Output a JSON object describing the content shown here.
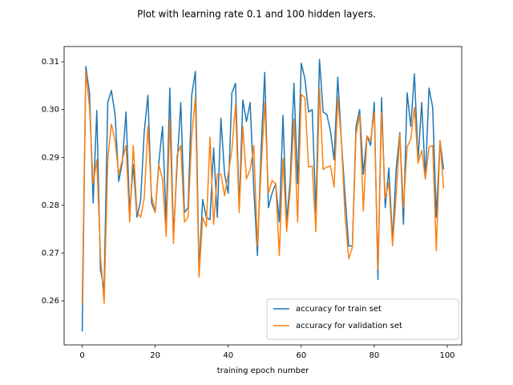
{
  "chart_data": {
    "type": "line",
    "title": "Plot with learning rate 0.1 and 100 hidden layers.",
    "x_label": "training epoch number",
    "x": [
      0,
      1,
      2,
      3,
      4,
      5,
      6,
      7,
      8,
      9,
      10,
      11,
      12,
      13,
      14,
      15,
      16,
      17,
      18,
      19,
      20,
      21,
      22,
      23,
      24,
      25,
      26,
      27,
      28,
      29,
      30,
      31,
      32,
      33,
      34,
      35,
      36,
      37,
      38,
      39,
      40,
      41,
      42,
      43,
      44,
      45,
      46,
      47,
      48,
      49,
      50,
      51,
      52,
      53,
      54,
      55,
      56,
      57,
      58,
      59,
      60,
      61,
      62,
      63,
      64,
      65,
      66,
      67,
      68,
      69,
      70,
      71,
      72,
      73,
      74,
      75,
      76,
      77,
      78,
      79,
      80,
      81,
      82,
      83,
      84,
      85,
      86,
      87,
      88,
      89,
      90,
      91,
      92,
      93,
      94,
      95,
      96,
      97,
      98,
      99
    ],
    "series": [
      {
        "name": "accuracy for train set",
        "color": "#1f77b4",
        "values": [
          0.2536,
          0.309,
          0.3035,
          0.2805,
          0.2998,
          0.2665,
          0.2625,
          0.3015,
          0.304,
          0.299,
          0.285,
          0.289,
          0.2995,
          0.2785,
          0.2885,
          0.2775,
          0.281,
          0.2955,
          0.303,
          0.2805,
          0.2785,
          0.289,
          0.2965,
          0.2765,
          0.3045,
          0.2735,
          0.2885,
          0.3015,
          0.2785,
          0.2795,
          0.303,
          0.308,
          0.2665,
          0.2812,
          0.2775,
          0.277,
          0.292,
          0.2775,
          0.2982,
          0.2865,
          0.2825,
          0.3035,
          0.3055,
          0.2795,
          0.302,
          0.2975,
          0.3015,
          0.2835,
          0.2695,
          0.2915,
          0.3078,
          0.2795,
          0.2825,
          0.2845,
          0.2765,
          0.2988,
          0.2765,
          0.2855,
          0.3055,
          0.2845,
          0.3097,
          0.3065,
          0.2995,
          0.3,
          0.2785,
          0.3105,
          0.2995,
          0.299,
          0.2955,
          0.2895,
          0.3068,
          0.2935,
          0.282,
          0.2715,
          0.2715,
          0.2965,
          0.3,
          0.2865,
          0.2945,
          0.2925,
          0.3015,
          0.2645,
          0.3025,
          0.2795,
          0.2878,
          0.2725,
          0.2875,
          0.2952,
          0.276,
          0.3035,
          0.2965,
          0.3075,
          0.2895,
          0.3015,
          0.2855,
          0.3045,
          0.3005,
          0.2775,
          0.2935,
          0.2875
        ]
      },
      {
        "name": "accuracy for validation set",
        "color": "#ff7f0e",
        "values": [
          0.2595,
          0.308,
          0.3005,
          0.2845,
          0.2895,
          0.2695,
          0.2595,
          0.2895,
          0.297,
          0.2935,
          0.2865,
          0.2895,
          0.2925,
          0.2765,
          0.2925,
          0.2785,
          0.2775,
          0.2815,
          0.2965,
          0.282,
          0.2785,
          0.2885,
          0.2855,
          0.2735,
          0.298,
          0.272,
          0.2905,
          0.2925,
          0.2765,
          0.2775,
          0.2945,
          0.3025,
          0.265,
          0.2775,
          0.2755,
          0.2942,
          0.276,
          0.2865,
          0.2865,
          0.282,
          0.2865,
          0.2915,
          0.301,
          0.2785,
          0.2965,
          0.2855,
          0.2875,
          0.2925,
          0.2715,
          0.2875,
          0.3015,
          0.2825,
          0.2852,
          0.2845,
          0.2695,
          0.2898,
          0.2745,
          0.2835,
          0.298,
          0.2765,
          0.3032,
          0.3025,
          0.288,
          0.2882,
          0.2745,
          0.3045,
          0.2875,
          0.288,
          0.2882,
          0.2838,
          0.3025,
          0.2935,
          0.2778,
          0.2688,
          0.2712,
          0.2948,
          0.299,
          0.2788,
          0.2945,
          0.2935,
          0.2995,
          0.2665,
          0.2995,
          0.2815,
          0.2848,
          0.2715,
          0.2822,
          0.2948,
          0.2795,
          0.2922,
          0.2938,
          0.3005,
          0.2888,
          0.2915,
          0.2855,
          0.2922,
          0.2925,
          0.2705,
          0.2935,
          0.2835
        ]
      }
    ],
    "xlim": [
      -4.95,
      103.95
    ],
    "xticks": [
      0,
      20,
      40,
      60,
      80,
      100
    ],
    "ylim": [
      0.2508,
      0.3132
    ],
    "yticks": [
      0.26,
      0.27,
      0.28,
      0.29,
      {
        "value": 0.3,
        "label": "0.30"
      },
      0.31
    ],
    "grid": false,
    "legend": "lower right"
  }
}
